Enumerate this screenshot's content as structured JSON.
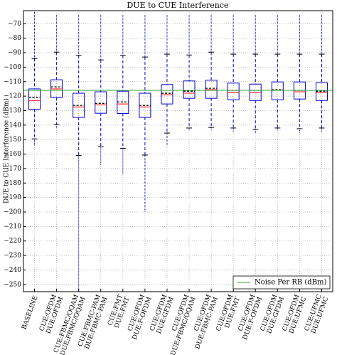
{
  "chart_data": {
    "type": "box",
    "title": "DUE to CUE Interference",
    "y_label": "DUE to CUE Interference (dBm)",
    "categories": [
      [
        "BASELINE"
      ],
      [
        "CUE:OFDM",
        "DUE:OFDM"
      ],
      [
        "CUE:FBMC/OQAM",
        "DUE:FBMC/OQAM"
      ],
      [
        "CUE:FBMC-PAM",
        "DUE:FBMC-PAM"
      ],
      [
        "CUE:FMT",
        "DUE:FMT"
      ],
      [
        "CUE:OFDM",
        "DUE:F-OFDM"
      ],
      [
        "CUE:GFDM",
        "DUE:GFDM"
      ],
      [
        "CUE:OFDM",
        "DUE:FBMC/OQAM"
      ],
      [
        "CUE:OFDM",
        "DUE:FBMC-PAM"
      ],
      [
        "CUE:OFDM",
        "DUE:FMT"
      ],
      [
        "CUE:OFDM",
        "DUE:F-OFDM"
      ],
      [
        "CUE:OFDM",
        "DUE:GFDM"
      ],
      [
        "CUE:OFDM",
        "DUE:UFMC"
      ],
      [
        "CUE:UFMC",
        "DUE:UFMC"
      ]
    ],
    "category_label_colors": [
      "#ff0000",
      "#000000",
      "#000000",
      "#000000",
      "#000000",
      "#000000",
      "#000000",
      "#000000",
      "#000000",
      "#000000",
      "#000000",
      "#000000",
      "#000000",
      "#000000"
    ],
    "boxes": [
      {
        "flier_high": -62,
        "whisker_high": -94,
        "q3": -115,
        "mean": -121,
        "median": -123,
        "q1": -129,
        "whisker_low": -149.5,
        "flier_low": -154
      },
      {
        "flier_high": -64,
        "whisker_high": -89.6,
        "q3": -108.7,
        "mean": -113.6,
        "median": -115,
        "q1": -121,
        "whisker_low": -139.6,
        "flier_low": -142
      },
      {
        "flier_high": -64,
        "whisker_high": -92,
        "q3": -118,
        "mean": -126.4,
        "median": -127.4,
        "q1": -134.7,
        "whisker_low": -161,
        "flier_low": -255
      },
      {
        "flier_high": -64,
        "whisker_high": -95,
        "q3": -117,
        "mean": -125,
        "median": -126,
        "q1": -131.8,
        "whisker_low": -155,
        "flier_low": -167.6
      },
      {
        "flier_high": -64,
        "whisker_high": -92,
        "q3": -116.6,
        "mean": -124,
        "median": -125.4,
        "q1": -132,
        "whisker_low": -156,
        "flier_low": -174
      },
      {
        "flier_high": -64,
        "whisker_high": -93,
        "q3": -118,
        "mean": -126.4,
        "median": -127.4,
        "q1": -134.7,
        "whisker_low": -160.7,
        "flier_low": -200
      },
      {
        "flier_high": -64,
        "whisker_high": -91,
        "q3": -112,
        "mean": -118,
        "median": -119,
        "q1": -125.4,
        "whisker_low": -145.5,
        "flier_low": -154
      },
      {
        "flier_high": -64,
        "whisker_high": -91.6,
        "q3": -109.5,
        "mean": -116.6,
        "median": -118,
        "q1": -121.5,
        "whisker_low": -142,
        "flier_low": -144
      },
      {
        "flier_high": -64,
        "whisker_high": -89.6,
        "q3": -109,
        "mean": -114.6,
        "median": -115.6,
        "q1": -121.5,
        "whisker_low": -141.6,
        "flier_low": -143.5
      },
      {
        "flier_high": -64,
        "whisker_high": -91,
        "q3": -111,
        "mean": -116,
        "median": -117.6,
        "q1": -122.5,
        "whisker_low": -142,
        "flier_low": -144.5
      },
      {
        "flier_high": -64,
        "whisker_high": -91,
        "q3": -111.7,
        "mean": -116,
        "median": -117.6,
        "q1": -123,
        "whisker_low": -143,
        "flier_low": -145.5
      },
      {
        "flier_high": -64,
        "whisker_high": -91,
        "q3": -110.2,
        "mean": -115.6,
        "median": -116,
        "q1": -122.5,
        "whisker_low": -142,
        "flier_low": -144
      },
      {
        "flier_high": -64,
        "whisker_high": -91,
        "q3": -110.2,
        "mean": -116,
        "median": -117,
        "q1": -122,
        "whisker_low": -142.5,
        "flier_low": -145
      },
      {
        "flier_high": -64,
        "whisker_high": -91,
        "q3": -110.7,
        "mean": -116.6,
        "median": -117.6,
        "q1": -123,
        "whisker_low": -142,
        "flier_low": -145
      }
    ],
    "box_color": "#0000cc",
    "median_color": "#ff0000",
    "mean_color": "#000000",
    "reference_line": {
      "name": "Noise Per RB (dBm)",
      "value": -116,
      "color": "#2ca02c"
    },
    "legend": "lower right",
    "ylim": [
      -255,
      -61
    ],
    "yticks": [
      {
        "value": -70,
        "label": "−70"
      },
      {
        "value": -80,
        "label": "−80"
      },
      {
        "value": -90,
        "label": "−90"
      },
      {
        "value": -100,
        "label": "−100"
      },
      {
        "value": -110,
        "label": "−110"
      },
      {
        "value": -120,
        "label": "−120"
      },
      {
        "value": -130,
        "label": "−130"
      },
      {
        "value": -140,
        "label": "−140"
      },
      {
        "value": -150,
        "label": "−150"
      },
      {
        "value": -160,
        "label": "−160"
      },
      {
        "value": -170,
        "label": "−170"
      },
      {
        "value": -180,
        "label": "−180"
      },
      {
        "value": -190,
        "label": "−190"
      },
      {
        "value": -200,
        "label": "−200"
      },
      {
        "value": -210,
        "label": "−210"
      },
      {
        "value": -220,
        "label": "−220"
      },
      {
        "value": -230,
        "label": "−230"
      },
      {
        "value": -240,
        "label": "−240"
      },
      {
        "value": -250,
        "label": "−250"
      }
    ],
    "grid": true
  }
}
